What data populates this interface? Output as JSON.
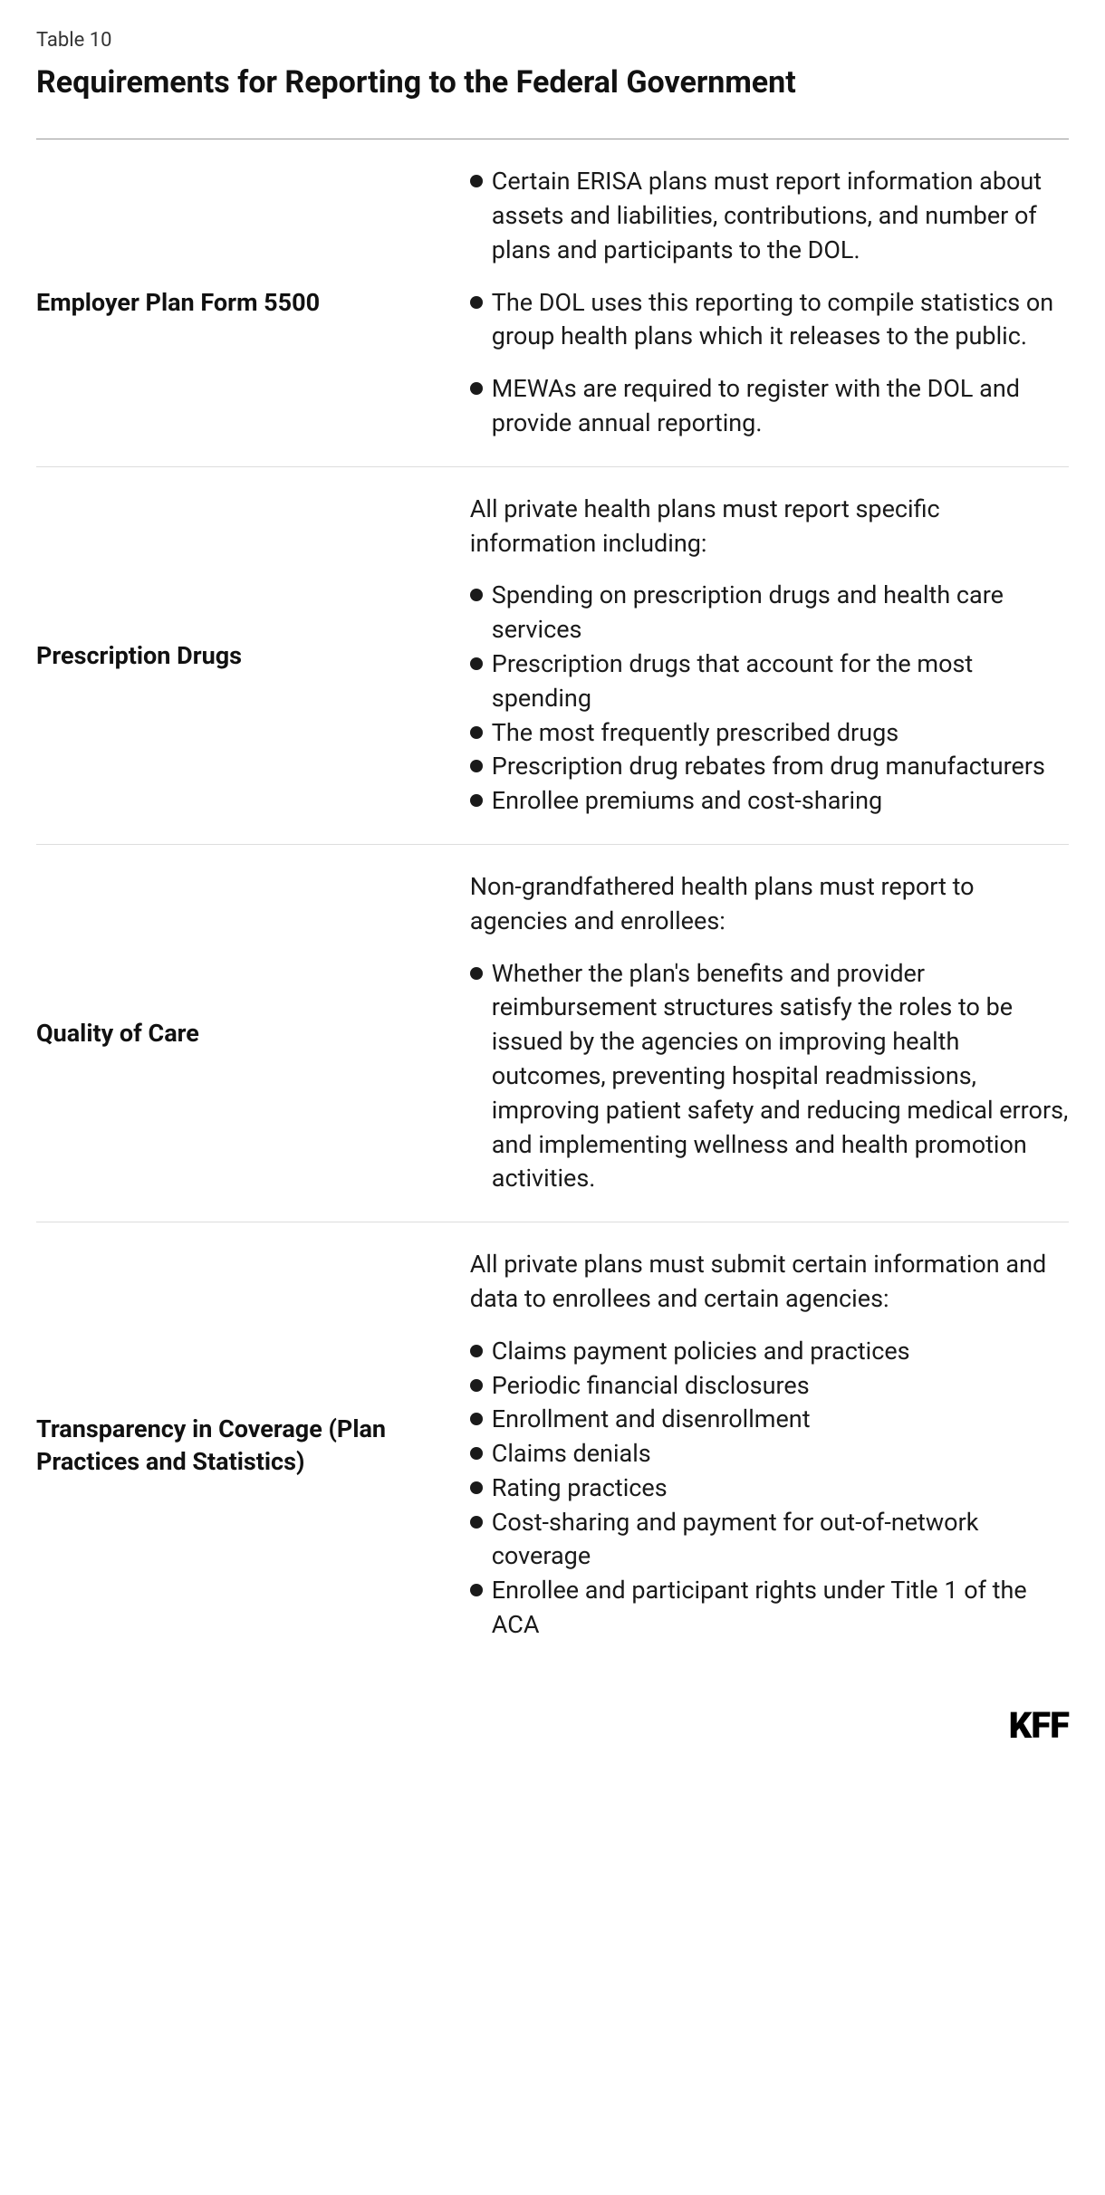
{
  "table_label": "Table 10",
  "table_title": "Requirements for Reporting to the Federal Government",
  "colors": {
    "text": "#1a1a1a",
    "title": "#111111",
    "background": "#ffffff",
    "divider_top": "#999999",
    "divider_row": "#dddddd",
    "bullet": "#1a1a1a"
  },
  "typography": {
    "label_fontsize": 22,
    "title_fontsize": 34,
    "body_fontsize": 27,
    "heading_weight": 700,
    "logo_fontsize": 40,
    "logo_weight": 900
  },
  "rows": [
    {
      "heading": "Employer Plan Form 5500",
      "intro": null,
      "bullets_spaced": true,
      "bullets": [
        "Certain ERISA plans must report information about assets and liabilities, contributions, and number of plans and participants to the DOL.",
        "The DOL uses this reporting to compile statistics on group health plans which it releases to the public.",
        "MEWAs are required to register with the DOL and provide annual reporting."
      ]
    },
    {
      "heading": "Prescription Drugs",
      "intro": "All private health plans must report specific information including:",
      "bullets_spaced": false,
      "bullets": [
        "Spending on prescription drugs and health care services",
        "Prescription drugs that account for the most spending",
        "The most frequently prescribed drugs",
        "Prescription drug rebates from drug manufacturers",
        "Enrollee premiums and cost-sharing"
      ]
    },
    {
      "heading": "Quality of Care",
      "intro": "Non-grandfathered health plans must report to agencies and enrollees:",
      "bullets_spaced": false,
      "bullets": [
        "Whether the plan's benefits and provider reimbursement structures satisfy the roles to be issued by the agencies on improving health outcomes, preventing hospital readmissions, improving patient safety and reducing medical errors, and implementing wellness and health promotion activities."
      ]
    },
    {
      "heading": "Transparency in Coverage (Plan Practices and Statistics)",
      "intro": "All private plans must submit certain information and data to enrollees and certain agencies:",
      "bullets_spaced": false,
      "bullets": [
        "Claims payment policies and practices",
        "Periodic financial disclosures",
        "Enrollment and disenrollment",
        "Claims denials",
        "Rating practices",
        "Cost-sharing and payment for out-of-network coverage",
        "Enrollee and participant rights under Title 1 of the ACA"
      ]
    }
  ],
  "footer_logo": "KFF"
}
